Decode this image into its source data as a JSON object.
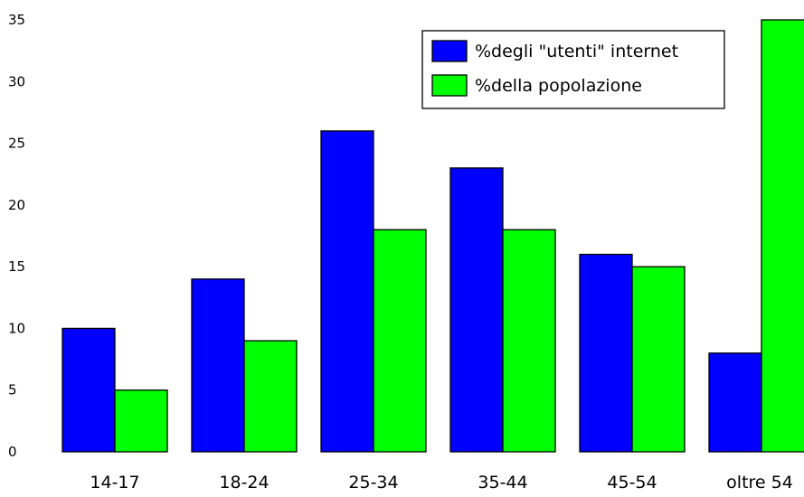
{
  "chart_data": {
    "type": "bar",
    "categories": [
      "14-17",
      "18-24",
      "25-34",
      "35-44",
      "45-54",
      "oltre 54"
    ],
    "series": [
      {
        "name": "%degli \"utenti\" internet",
        "values": [
          10,
          14,
          26,
          23,
          16,
          8
        ],
        "color": "#0000ff"
      },
      {
        "name": "%della popolazione",
        "values": [
          5,
          9,
          18,
          18,
          15,
          35
        ],
        "color": "#00ff00"
      }
    ],
    "title": "",
    "xlabel": "",
    "ylabel": "",
    "ylim": [
      0,
      35
    ],
    "yticks": [
      0,
      5,
      10,
      15,
      20,
      25,
      30,
      35
    ],
    "grid": false,
    "legend_position": "top-right"
  }
}
